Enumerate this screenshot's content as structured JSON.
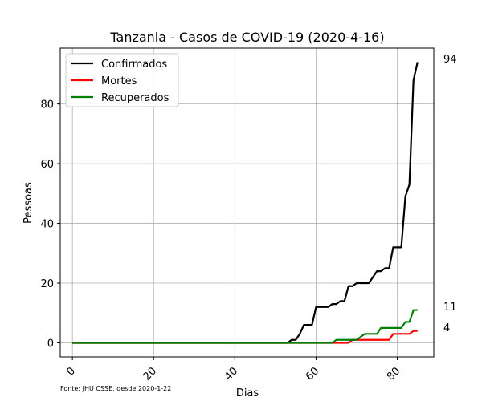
{
  "chart_data": {
    "type": "line",
    "title": "Tanzania - Casos de COVID-19 (2020-4-16)",
    "xlabel": "Dias",
    "ylabel": "Pessoas",
    "source_note": "Fonte: JHU CSSE, desde 2020-1-22",
    "xlim": [
      -3,
      89
    ],
    "ylim": [
      -4.7,
      98.7
    ],
    "x_ticks": [
      0,
      20,
      40,
      60,
      80
    ],
    "y_ticks": [
      0,
      20,
      40,
      60,
      80
    ],
    "grid": true,
    "legend_position": "top-left",
    "series": [
      {
        "name": "Confirmados",
        "color": "#000000",
        "end_label": "94",
        "points": [
          [
            0,
            0
          ],
          [
            53,
            0
          ],
          [
            54,
            1
          ],
          [
            55,
            1
          ],
          [
            56,
            3
          ],
          [
            57,
            6
          ],
          [
            58,
            6
          ],
          [
            59,
            6
          ],
          [
            60,
            12
          ],
          [
            61,
            12
          ],
          [
            62,
            12
          ],
          [
            63,
            12
          ],
          [
            64,
            13
          ],
          [
            65,
            13
          ],
          [
            66,
            14
          ],
          [
            67,
            14
          ],
          [
            68,
            19
          ],
          [
            69,
            19
          ],
          [
            70,
            20
          ],
          [
            71,
            20
          ],
          [
            72,
            20
          ],
          [
            73,
            20
          ],
          [
            74,
            22
          ],
          [
            75,
            24
          ],
          [
            76,
            24
          ],
          [
            77,
            25
          ],
          [
            78,
            25
          ],
          [
            79,
            32
          ],
          [
            80,
            32
          ],
          [
            81,
            32
          ],
          [
            82,
            49
          ],
          [
            83,
            53
          ],
          [
            84,
            88
          ],
          [
            85,
            94
          ]
        ]
      },
      {
        "name": "Mortes",
        "color": "#ff0000",
        "end_label": "4",
        "points": [
          [
            0,
            0
          ],
          [
            68,
            0
          ],
          [
            69,
            1
          ],
          [
            70,
            1
          ],
          [
            78,
            1
          ],
          [
            79,
            3
          ],
          [
            80,
            3
          ],
          [
            83,
            3
          ],
          [
            84,
            4
          ],
          [
            85,
            4
          ]
        ]
      },
      {
        "name": "Recuperados",
        "color": "#008000",
        "end_label": "11",
        "points": [
          [
            0,
            0
          ],
          [
            64,
            0
          ],
          [
            65,
            1
          ],
          [
            66,
            1
          ],
          [
            70,
            1
          ],
          [
            71,
            2
          ],
          [
            72,
            3
          ],
          [
            73,
            3
          ],
          [
            74,
            3
          ],
          [
            75,
            3
          ],
          [
            76,
            5
          ],
          [
            77,
            5
          ],
          [
            78,
            5
          ],
          [
            79,
            5
          ],
          [
            80,
            5
          ],
          [
            81,
            5
          ],
          [
            82,
            7
          ],
          [
            83,
            7
          ],
          [
            84,
            11
          ],
          [
            85,
            11
          ]
        ]
      }
    ]
  }
}
